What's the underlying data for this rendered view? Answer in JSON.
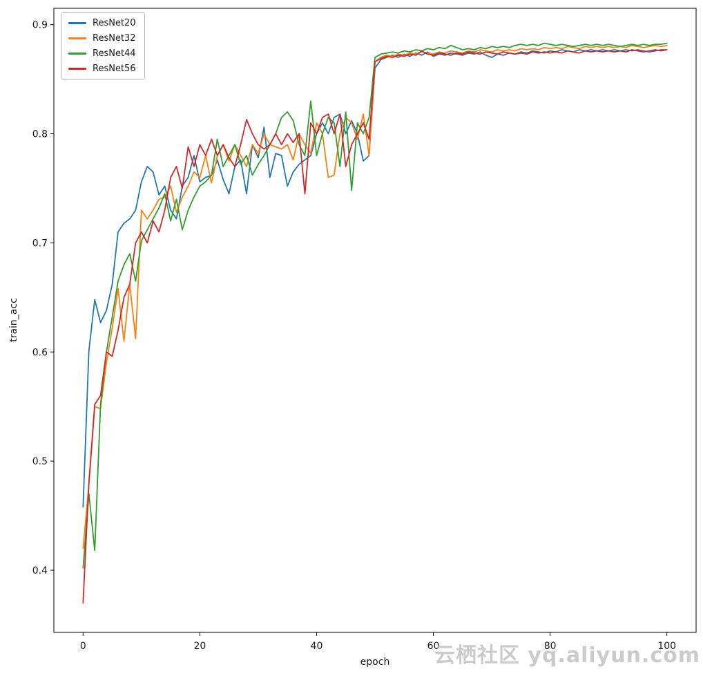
{
  "watermark": {
    "text": "云栖社区 yq.aliyun.com"
  },
  "chart_data": {
    "type": "line",
    "title": "",
    "xlabel": "epoch",
    "ylabel": "train_acc",
    "xlim": [
      -5,
      105
    ],
    "ylim": [
      0.343,
      0.915
    ],
    "xticks": [
      0,
      20,
      40,
      60,
      80,
      100
    ],
    "yticks": [
      0.4,
      0.5,
      0.6,
      0.7,
      0.8,
      0.9
    ],
    "grid": false,
    "legend_position": "upper left",
    "x": [
      0,
      1,
      2,
      3,
      4,
      5,
      6,
      7,
      8,
      9,
      10,
      11,
      12,
      13,
      14,
      15,
      16,
      17,
      18,
      19,
      20,
      21,
      22,
      23,
      24,
      25,
      26,
      27,
      28,
      29,
      30,
      31,
      32,
      33,
      34,
      35,
      36,
      37,
      38,
      39,
      40,
      41,
      42,
      43,
      44,
      45,
      46,
      47,
      48,
      49,
      50,
      51,
      52,
      53,
      54,
      55,
      56,
      57,
      58,
      59,
      60,
      61,
      62,
      63,
      64,
      65,
      66,
      67,
      68,
      69,
      70,
      71,
      72,
      73,
      74,
      75,
      76,
      77,
      78,
      79,
      80,
      81,
      82,
      83,
      84,
      85,
      86,
      87,
      88,
      89,
      90,
      91,
      92,
      93,
      94,
      95,
      96,
      97,
      98,
      99,
      100
    ],
    "series": [
      {
        "name": "ResNet20",
        "color": "#1f77b4",
        "values": [
          0.458,
          0.601,
          0.648,
          0.627,
          0.638,
          0.662,
          0.71,
          0.718,
          0.722,
          0.73,
          0.756,
          0.77,
          0.765,
          0.744,
          0.752,
          0.73,
          0.722,
          0.752,
          0.76,
          0.78,
          0.756,
          0.76,
          0.762,
          0.776,
          0.758,
          0.745,
          0.77,
          0.776,
          0.745,
          0.79,
          0.778,
          0.806,
          0.76,
          0.782,
          0.78,
          0.752,
          0.765,
          0.772,
          0.776,
          0.78,
          0.8,
          0.81,
          0.8,
          0.815,
          0.818,
          0.8,
          0.812,
          0.8,
          0.775,
          0.78,
          0.86,
          0.868,
          0.87,
          0.872,
          0.87,
          0.873,
          0.871,
          0.874,
          0.872,
          0.875,
          0.871,
          0.873,
          0.872,
          0.874,
          0.873,
          0.872,
          0.874,
          0.873,
          0.875,
          0.872,
          0.87,
          0.873,
          0.872,
          0.874,
          0.873,
          0.875,
          0.874,
          0.876,
          0.875,
          0.874,
          0.876,
          0.875,
          0.877,
          0.876,
          0.875,
          0.877,
          0.876,
          0.877,
          0.876,
          0.877,
          0.876,
          0.877,
          0.876,
          0.877,
          0.876,
          0.877,
          0.876,
          0.875,
          0.876,
          0.877,
          0.877
        ]
      },
      {
        "name": "ResNet32",
        "color": "#ff7f0e",
        "values": [
          0.42,
          0.478,
          0.55,
          0.548,
          0.59,
          0.622,
          0.658,
          0.61,
          0.662,
          0.612,
          0.73,
          0.722,
          0.73,
          0.74,
          0.742,
          0.752,
          0.728,
          0.742,
          0.752,
          0.765,
          0.76,
          0.78,
          0.755,
          0.78,
          0.79,
          0.775,
          0.79,
          0.78,
          0.77,
          0.79,
          0.782,
          0.8,
          0.79,
          0.788,
          0.786,
          0.79,
          0.776,
          0.8,
          0.79,
          0.782,
          0.81,
          0.8,
          0.76,
          0.762,
          0.8,
          0.815,
          0.81,
          0.795,
          0.818,
          0.78,
          0.866,
          0.87,
          0.872,
          0.871,
          0.873,
          0.872,
          0.874,
          0.873,
          0.875,
          0.874,
          0.873,
          0.875,
          0.874,
          0.876,
          0.875,
          0.874,
          0.876,
          0.875,
          0.877,
          0.876,
          0.875,
          0.877,
          0.876,
          0.877,
          0.876,
          0.878,
          0.877,
          0.878,
          0.877,
          0.879,
          0.878,
          0.879,
          0.878,
          0.88,
          0.879,
          0.878,
          0.88,
          0.879,
          0.88,
          0.879,
          0.88,
          0.879,
          0.88,
          0.879,
          0.881,
          0.88,
          0.879,
          0.88,
          0.881,
          0.88,
          0.881
        ]
      },
      {
        "name": "ResNet44",
        "color": "#2ca02c",
        "values": [
          0.402,
          0.47,
          0.418,
          0.552,
          0.6,
          0.632,
          0.665,
          0.68,
          0.69,
          0.665,
          0.702,
          0.712,
          0.722,
          0.732,
          0.745,
          0.72,
          0.74,
          0.712,
          0.73,
          0.742,
          0.752,
          0.756,
          0.762,
          0.795,
          0.77,
          0.78,
          0.79,
          0.772,
          0.78,
          0.762,
          0.772,
          0.78,
          0.79,
          0.8,
          0.815,
          0.82,
          0.812,
          0.79,
          0.78,
          0.83,
          0.78,
          0.8,
          0.815,
          0.81,
          0.77,
          0.82,
          0.748,
          0.81,
          0.8,
          0.815,
          0.87,
          0.873,
          0.874,
          0.875,
          0.874,
          0.876,
          0.875,
          0.877,
          0.876,
          0.878,
          0.877,
          0.879,
          0.878,
          0.881,
          0.879,
          0.877,
          0.878,
          0.877,
          0.879,
          0.878,
          0.88,
          0.879,
          0.88,
          0.879,
          0.881,
          0.882,
          0.881,
          0.882,
          0.881,
          0.883,
          0.882,
          0.881,
          0.882,
          0.881,
          0.88,
          0.881,
          0.882,
          0.881,
          0.882,
          0.881,
          0.882,
          0.881,
          0.88,
          0.881,
          0.882,
          0.881,
          0.882,
          0.881,
          0.882,
          0.882,
          0.883
        ]
      },
      {
        "name": "ResNet56",
        "color": "#d62728",
        "values": [
          0.37,
          0.48,
          0.552,
          0.56,
          0.6,
          0.596,
          0.62,
          0.65,
          0.662,
          0.7,
          0.71,
          0.7,
          0.72,
          0.71,
          0.73,
          0.76,
          0.77,
          0.75,
          0.788,
          0.77,
          0.79,
          0.78,
          0.795,
          0.78,
          0.79,
          0.778,
          0.77,
          0.79,
          0.813,
          0.8,
          0.79,
          0.786,
          0.79,
          0.8,
          0.79,
          0.8,
          0.792,
          0.8,
          0.745,
          0.81,
          0.8,
          0.815,
          0.818,
          0.8,
          0.818,
          0.77,
          0.79,
          0.8,
          0.81,
          0.795,
          0.866,
          0.869,
          0.871,
          0.87,
          0.872,
          0.871,
          0.873,
          0.872,
          0.876,
          0.873,
          0.872,
          0.874,
          0.873,
          0.872,
          0.874,
          0.873,
          0.875,
          0.874,
          0.873,
          0.875,
          0.874,
          0.873,
          0.875,
          0.874,
          0.873,
          0.874,
          0.873,
          0.875,
          0.874,
          0.875,
          0.874,
          0.875,
          0.874,
          0.876,
          0.875,
          0.874,
          0.876,
          0.875,
          0.876,
          0.875,
          0.876,
          0.875,
          0.876,
          0.875,
          0.877,
          0.876,
          0.875,
          0.876,
          0.877,
          0.876,
          0.877
        ]
      }
    ]
  }
}
